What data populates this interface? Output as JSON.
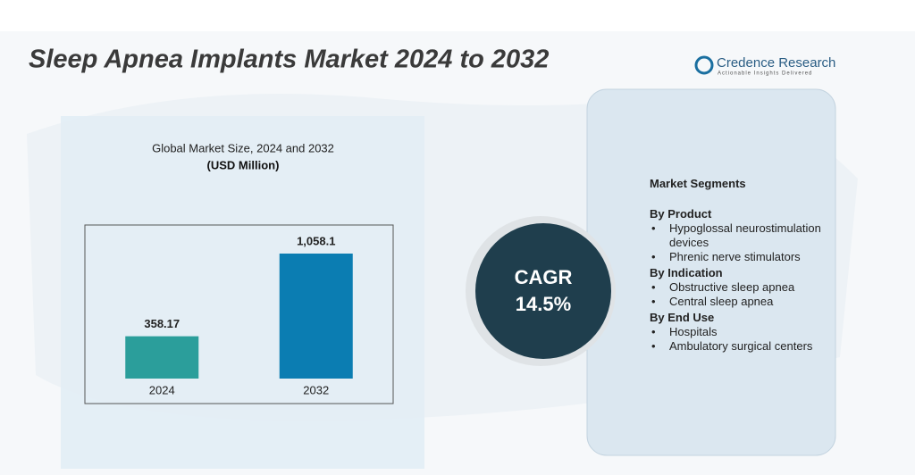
{
  "title": "Sleep Apnea Implants Market 2024 to 2032",
  "logo": {
    "name": "Credence Research",
    "tagline": "Actionable Insights Delivered"
  },
  "chart_data": {
    "type": "bar",
    "title": "Global Market Size, 2024 and 2032",
    "subtitle": "(USD Million)",
    "categories": [
      "2024",
      "2032"
    ],
    "values": [
      358.17,
      1058.1
    ],
    "value_labels": [
      "358.17",
      "1,058.1"
    ],
    "colors": [
      "#2b9e9b",
      "#0b7db2"
    ],
    "ylim": [
      0,
      1300
    ]
  },
  "cagr": {
    "label": "CAGR",
    "value": "14.5%"
  },
  "segments": {
    "title": "Market Segments",
    "groups": [
      {
        "heading": "By Product",
        "items": [
          "Hypoglossal neurostimulation devices",
          "Phrenic nerve stimulators"
        ]
      },
      {
        "heading": "By Indication",
        "items": [
          "Obstructive sleep apnea",
          "Central sleep apnea"
        ]
      },
      {
        "heading": "By End Use",
        "items": [
          "Hospitals",
          "Ambulatory surgical centers"
        ]
      }
    ]
  }
}
